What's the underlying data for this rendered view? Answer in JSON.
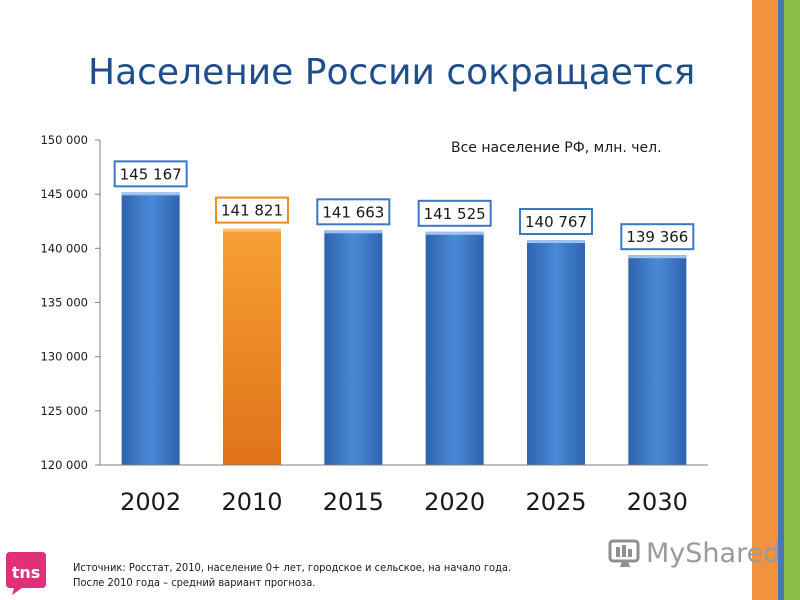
{
  "page": {
    "title": "Население России сокращается",
    "source_line1": "Источник: Росстат, 2010, население 0+ лет, городское и сельское, на начало года.",
    "source_line2": "После 2010 года – средний вариант прогноза.",
    "logo_text": "tns",
    "watermark_text": "MyShared"
  },
  "colors": {
    "title": "#1f4e8c",
    "bar_blue": "#3a77c9",
    "bar_orange": "#f28a1c",
    "stripe_orange": "#f3923c",
    "stripe_blue": "#4a76b8",
    "stripe_green": "#8cbd4a",
    "logo_pink": "#e0307a"
  },
  "chart_data": {
    "type": "bar",
    "title": "Все население РФ, млн. чел.",
    "categories": [
      "2002",
      "2010",
      "2015",
      "2020",
      "2025",
      "2030"
    ],
    "values": [
      145167,
      141821,
      141663,
      141525,
      140767,
      139366
    ],
    "value_labels": [
      "145 167",
      "141 821",
      "141 663",
      "141 525",
      "140 767",
      "139 366"
    ],
    "highlight_index": 1,
    "ylim": [
      120000,
      150000
    ],
    "yticks": [
      120000,
      125000,
      130000,
      135000,
      140000,
      145000,
      150000
    ],
    "ytick_labels": [
      "120 000",
      "125 000",
      "130 000",
      "135 000",
      "140 000",
      "145 000",
      "150 000"
    ],
    "xlabel": "",
    "ylabel": "",
    "grid": false,
    "legend": "none"
  }
}
